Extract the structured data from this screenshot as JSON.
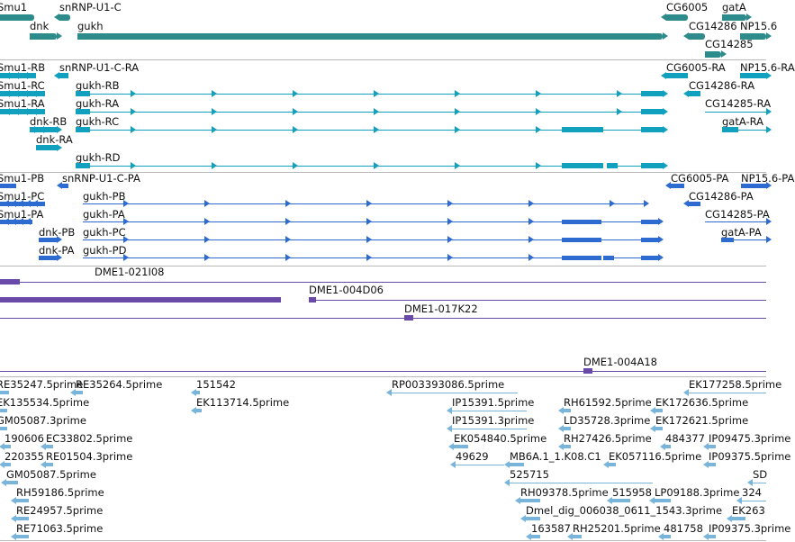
{
  "colors": {
    "gene": "#2e8b8b",
    "transcript": "#12a0bf",
    "protein": "#2d6bd1",
    "clone": "#6a4aa8",
    "est": "#79b4db",
    "separator": "#b9b9b9"
  },
  "tracks": [
    {
      "name": "genes",
      "features": [
        {
          "label": "Smu1",
          "strand": "-",
          "parts": []
        },
        {
          "label": "snRNP-U1-C",
          "strand": "-",
          "parts": []
        },
        {
          "label": "dnk",
          "strand": "+",
          "parts": []
        },
        {
          "label": "gukh",
          "strand": "+",
          "parts": []
        },
        {
          "label": "CG6005",
          "strand": "-",
          "parts": []
        },
        {
          "label": "gatA",
          "strand": "+",
          "parts": []
        },
        {
          "label": "CG14286",
          "strand": "-",
          "parts": []
        },
        {
          "label": "NP15.6",
          "strand": "+",
          "parts": []
        },
        {
          "label": "CG14285",
          "strand": "+",
          "parts": []
        }
      ]
    },
    {
      "name": "transcripts",
      "features": [
        {
          "label": "Smu1-RB",
          "strand": "-",
          "parts": []
        },
        {
          "label": "snRNP-U1-C-RA",
          "strand": "-",
          "parts": []
        },
        {
          "label": "Smu1-RC",
          "strand": "-",
          "parts": []
        },
        {
          "label": "gukh-RB",
          "strand": "+",
          "parts": []
        },
        {
          "label": "Smu1-RA",
          "strand": "-",
          "parts": []
        },
        {
          "label": "gukh-RA",
          "strand": "+",
          "parts": []
        },
        {
          "label": "dnk-RB",
          "strand": "+",
          "parts": []
        },
        {
          "label": "gukh-RC",
          "strand": "+",
          "parts": []
        },
        {
          "label": "dnk-RA",
          "strand": "+",
          "parts": []
        },
        {
          "label": "gukh-RD",
          "strand": "+",
          "parts": []
        },
        {
          "label": "CG6005-RA",
          "strand": "-",
          "parts": []
        },
        {
          "label": "NP15.6-RA",
          "strand": "+",
          "parts": []
        },
        {
          "label": "CG14286-RA",
          "strand": "-",
          "parts": []
        },
        {
          "label": "CG14285-RA",
          "strand": "+",
          "parts": []
        },
        {
          "label": "gatA-RA",
          "strand": "+",
          "parts": []
        }
      ]
    },
    {
      "name": "proteins",
      "features": [
        {
          "label": "Smu1-PB",
          "strand": "-",
          "parts": []
        },
        {
          "label": "snRNP-U1-C-PA",
          "strand": "-",
          "parts": []
        },
        {
          "label": "Smu1-PC",
          "strand": "-",
          "parts": []
        },
        {
          "label": "gukh-PB",
          "strand": "+",
          "parts": []
        },
        {
          "label": "Smu1-PA",
          "strand": "-",
          "parts": []
        },
        {
          "label": "gukh-PA",
          "strand": "+",
          "parts": []
        },
        {
          "label": "dnk-PB",
          "strand": "+",
          "parts": []
        },
        {
          "label": "gukh-PC",
          "strand": "+",
          "parts": []
        },
        {
          "label": "dnk-PA",
          "strand": "+",
          "parts": []
        },
        {
          "label": "gukh-PD",
          "strand": "+",
          "parts": []
        },
        {
          "label": "CG6005-PA",
          "strand": "-",
          "parts": []
        },
        {
          "label": "NP15.6-PA",
          "strand": "+",
          "parts": []
        },
        {
          "label": "CG14286-PA",
          "strand": "-",
          "parts": []
        },
        {
          "label": "CG14285-PA",
          "strand": "+",
          "parts": []
        },
        {
          "label": "gatA-PA",
          "strand": "+",
          "parts": []
        }
      ]
    },
    {
      "name": "clones",
      "features": [
        {
          "label": "DME1-021I08",
          "strand": "-",
          "parts": []
        },
        {
          "label": "DME1-004D06",
          "strand": "-",
          "parts": []
        },
        {
          "label": "DME1-017K22",
          "strand": "-",
          "parts": []
        },
        {
          "label": "DME1-004A18",
          "strand": "-",
          "parts": []
        }
      ]
    },
    {
      "name": "ests",
      "features": [
        {
          "label": "RE35247.5prime"
        },
        {
          "label": "RE35264.5prime"
        },
        {
          "label": "151542"
        },
        {
          "label": "RP003393086.5prime"
        },
        {
          "label": "EK177258.5prime"
        },
        {
          "label": "EK135534.5prime"
        },
        {
          "label": "EK113714.5prime"
        },
        {
          "label": "IP15391.5prime"
        },
        {
          "label": "RH61592.5prime"
        },
        {
          "label": "EK172636.5prime"
        },
        {
          "label": "GM05087.3prime"
        },
        {
          "label": "IP15391.3prime"
        },
        {
          "label": "LD35728.3prime"
        },
        {
          "label": "EK172621.5prime"
        },
        {
          "label": "190606"
        },
        {
          "label": "EC33802.5prime"
        },
        {
          "label": "EK054840.5prime"
        },
        {
          "label": "RH27426.5prime"
        },
        {
          "label": "484377"
        },
        {
          "label": "IP09475.3prime"
        },
        {
          "label": "220355"
        },
        {
          "label": "RE01504.3prime"
        },
        {
          "label": "49629"
        },
        {
          "label": "MB6A.1_1.K08.C1"
        },
        {
          "label": "EK057116.5prime"
        },
        {
          "label": "IP09375.5prime"
        },
        {
          "label": "GM05087.5prime"
        },
        {
          "label": "525715"
        },
        {
          "label": "SD"
        },
        {
          "label": "RH59186.5prime"
        },
        {
          "label": "RH09378.5prime"
        },
        {
          "label": "515958"
        },
        {
          "label": "LP09188.3prime"
        },
        {
          "label": "324"
        },
        {
          "label": "RE24957.5prime"
        },
        {
          "label": "Dmel_dig_006038_0611_1543.3prime"
        },
        {
          "label": "EK263"
        },
        {
          "label": "RE71063.5prime"
        },
        {
          "label": "163587"
        },
        {
          "label": "RH25201.5prime"
        },
        {
          "label": "481758"
        },
        {
          "label": "IP09375.3prime"
        }
      ]
    }
  ]
}
